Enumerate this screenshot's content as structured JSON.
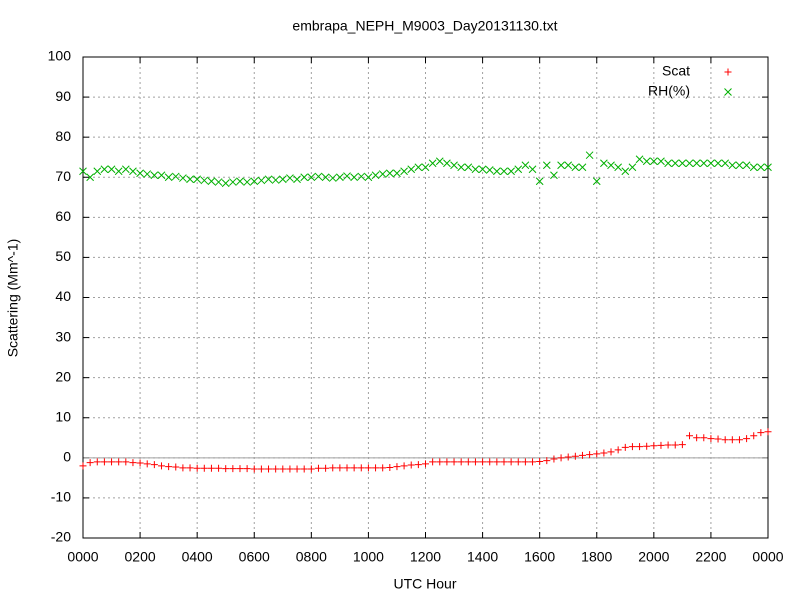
{
  "chart_data": {
    "type": "scatter",
    "title": "embrapa_NEPH_M9003_Day20131130.txt",
    "x_label": "UTC Hour",
    "y_label": "Scattering (Mm^-1)",
    "xlim": [
      0,
      24
    ],
    "ylim": [
      -20,
      100
    ],
    "xticks": [
      {
        "value": 0,
        "label": "0000"
      },
      {
        "value": 2,
        "label": "0200"
      },
      {
        "value": 4,
        "label": "0400"
      },
      {
        "value": 6,
        "label": "0600"
      },
      {
        "value": 8,
        "label": "0800"
      },
      {
        "value": 10,
        "label": "1000"
      },
      {
        "value": 12,
        "label": "1200"
      },
      {
        "value": 14,
        "label": "1400"
      },
      {
        "value": 16,
        "label": "1600"
      },
      {
        "value": 18,
        "label": "1800"
      },
      {
        "value": 20,
        "label": "2000"
      },
      {
        "value": 22,
        "label": "2200"
      },
      {
        "value": 24,
        "label": "0000"
      }
    ],
    "yticks": [
      -20,
      -10,
      0,
      10,
      20,
      30,
      40,
      50,
      60,
      70,
      80,
      90,
      100
    ],
    "grid": true,
    "legend": "top-right",
    "x": [
      0,
      0.25,
      0.5,
      0.75,
      1,
      1.25,
      1.5,
      1.75,
      2,
      2.25,
      2.5,
      2.75,
      3,
      3.25,
      3.5,
      3.75,
      4,
      4.25,
      4.5,
      4.75,
      5,
      5.25,
      5.5,
      5.75,
      6,
      6.25,
      6.5,
      6.75,
      7,
      7.25,
      7.5,
      7.75,
      8,
      8.25,
      8.5,
      8.75,
      9,
      9.25,
      9.5,
      9.75,
      10,
      10.25,
      10.5,
      10.75,
      11,
      11.25,
      11.5,
      11.75,
      12,
      12.25,
      12.5,
      12.75,
      13,
      13.25,
      13.5,
      13.75,
      14,
      14.25,
      14.5,
      14.75,
      15,
      15.25,
      15.5,
      15.75,
      16,
      16.25,
      16.5,
      16.75,
      17,
      17.25,
      17.5,
      17.75,
      18,
      18.25,
      18.5,
      18.75,
      19,
      19.25,
      19.5,
      19.75,
      20,
      20.25,
      20.5,
      20.75,
      21,
      21.25,
      21.5,
      21.75,
      22,
      22.25,
      22.5,
      22.75,
      23,
      23.25,
      23.5,
      23.75,
      24
    ],
    "series": [
      {
        "name": "Scat",
        "color": "#ff0000",
        "marker": "+",
        "values": [
          -2,
          -1.2,
          -1,
          -1,
          -1,
          -1,
          -1,
          -1.2,
          -1.3,
          -1.5,
          -1.7,
          -2,
          -2.2,
          -2.3,
          -2.5,
          -2.5,
          -2.6,
          -2.6,
          -2.6,
          -2.6,
          -2.7,
          -2.7,
          -2.7,
          -2.7,
          -2.8,
          -2.8,
          -2.8,
          -2.8,
          -2.8,
          -2.8,
          -2.8,
          -2.8,
          -2.8,
          -2.6,
          -2.6,
          -2.5,
          -2.5,
          -2.5,
          -2.5,
          -2.5,
          -2.5,
          -2.5,
          -2.5,
          -2.4,
          -2.2,
          -2,
          -1.8,
          -1.7,
          -1.5,
          -1,
          -1,
          -1,
          -1,
          -1,
          -1,
          -1,
          -1,
          -1,
          -1,
          -1,
          -1,
          -1,
          -1,
          -1,
          -0.9,
          -0.7,
          -0.3,
          0,
          0.2,
          0.4,
          0.6,
          0.8,
          1,
          1.2,
          1.5,
          2,
          2.6,
          2.8,
          2.8,
          2.9,
          3,
          3.1,
          3.2,
          3.2,
          3.3,
          5.5,
          5,
          5,
          4.8,
          4.7,
          4.5,
          4.5,
          4.5,
          4.8,
          5.5,
          6.3,
          6.5
        ]
      },
      {
        "name": "RH(%)",
        "color": "#00b000",
        "marker": "x",
        "values": [
          71.5,
          70,
          71.5,
          72,
          72,
          71.5,
          72,
          71.5,
          71,
          70.8,
          70.5,
          70.5,
          70,
          70.2,
          69.8,
          69.5,
          69.5,
          69.2,
          69,
          68.8,
          68.5,
          68.8,
          69,
          68.8,
          69,
          69.2,
          69.5,
          69.3,
          69.5,
          69.8,
          69.5,
          70,
          70,
          70.2,
          70,
          69.8,
          70,
          70.3,
          70,
          70.2,
          70,
          70.5,
          70.8,
          71,
          71,
          71.5,
          72,
          72.5,
          72.5,
          73.5,
          74,
          73.5,
          73,
          72.5,
          72.5,
          72,
          72,
          71.8,
          71.5,
          71.5,
          71.5,
          72,
          73,
          72,
          69,
          73,
          70.5,
          73,
          73,
          72.5,
          72.5,
          75.5,
          69,
          73.5,
          73,
          72.5,
          71.5,
          72.5,
          74.5,
          74,
          74,
          74,
          73.5,
          73.5,
          73.5,
          73.5,
          73.5,
          73.5,
          73.5,
          73.5,
          73.5,
          73,
          73,
          73,
          72.5,
          72.5,
          72.5
        ]
      }
    ]
  }
}
